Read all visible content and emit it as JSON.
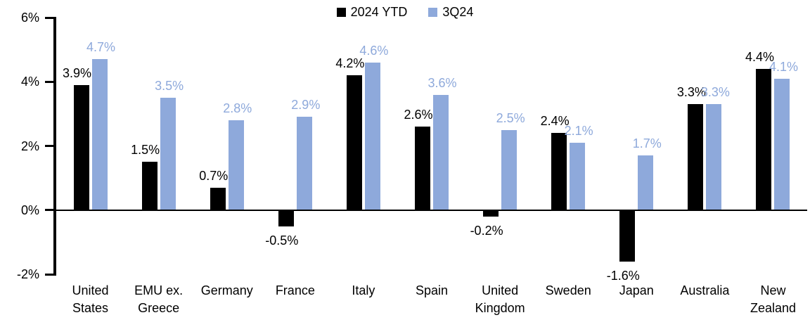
{
  "chart_data": {
    "type": "bar",
    "title": "",
    "categories": [
      "United States",
      "EMU ex. Greece",
      "Germany",
      "France",
      "Italy",
      "Spain",
      "United Kingdom",
      "Sweden",
      "Japan",
      "Australia",
      "New Zealand"
    ],
    "series": [
      {
        "name": "2024 YTD",
        "color": "#000000",
        "values": [
          3.9,
          1.5,
          0.7,
          -0.5,
          4.2,
          2.6,
          -0.2,
          2.4,
          -1.6,
          3.3,
          4.4
        ]
      },
      {
        "name": "3Q24",
        "color": "#8EA9DB",
        "values": [
          4.7,
          3.5,
          2.8,
          2.9,
          4.6,
          3.6,
          2.5,
          2.1,
          1.7,
          3.3,
          4.1
        ]
      }
    ],
    "value_label_format": "{value}%",
    "value_label_decimals": 1,
    "y_axis": {
      "ticks": [
        "6%",
        "4%",
        "2%",
        "0%",
        "-2%"
      ],
      "tick_values": [
        6,
        4,
        2,
        0,
        -2
      ],
      "min": -2,
      "max": 6,
      "grid": false
    },
    "legend": {
      "position": "top-center",
      "entries": [
        {
          "label": "2024 YTD",
          "color": "#000000"
        },
        {
          "label": "3Q24",
          "color": "#8EA9DB"
        }
      ]
    }
  },
  "colors": {
    "series_2024_ytd": "#000000",
    "series_3q24": "#8EA9DB",
    "axis": "#000000",
    "background": "#FFFFFF"
  }
}
